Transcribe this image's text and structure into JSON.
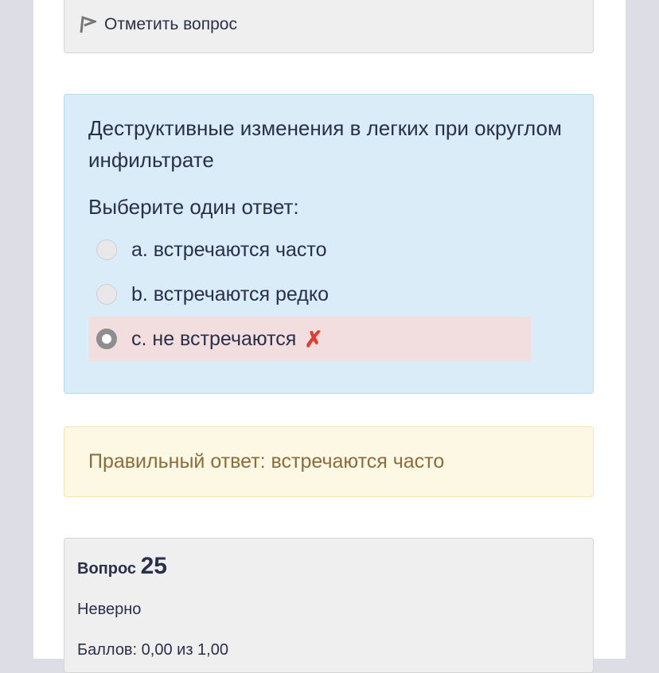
{
  "flag": {
    "label": "Отметить вопрос",
    "icon": "flag-icon"
  },
  "question": {
    "text": "Деструктивные изменения в легких при округлом инфильтрате",
    "prompt": "Выберите один ответ:",
    "options": [
      {
        "label": "a. встречаются часто",
        "selected": false
      },
      {
        "label": "b. встречаются редко",
        "selected": false
      },
      {
        "label": "c. не встречаются",
        "selected": true,
        "mark": "✗"
      }
    ]
  },
  "feedback": {
    "text": "Правильный ответ: встречаются часто"
  },
  "next": {
    "label": "Вопрос",
    "number": "25",
    "status": "Неверно",
    "grade": "Баллов: 0,00 из 1,00"
  },
  "colors": {
    "question_bg": "#d9ecf8",
    "wrong_bg": "#f2dede",
    "feedback_bg": "#fcf8e3",
    "wrong_mark": "#e53b2f"
  }
}
